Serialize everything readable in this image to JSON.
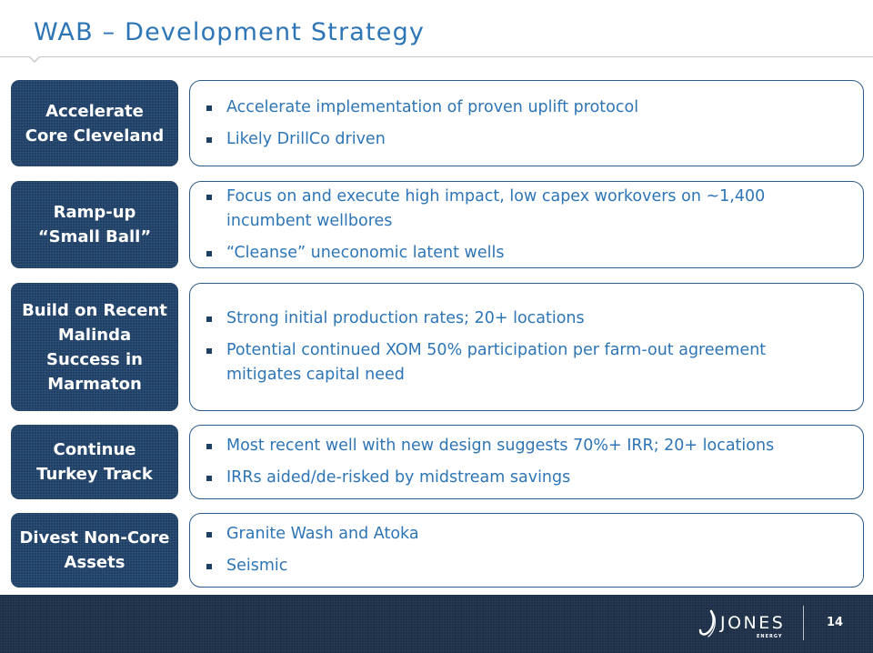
{
  "title": "WAB – Development Strategy",
  "strategies": [
    {
      "label": "Accelerate\nCore Cleveland",
      "bullets": [
        "Accelerate implementation of proven uplift protocol",
        "Likely DrillCo driven"
      ]
    },
    {
      "label": "Ramp-up\n“Small Ball”",
      "bullets": [
        "Focus on and execute high impact, low capex workovers on ~1,400 incumbent wellbores",
        "“Cleanse” uneconomic latent wells"
      ]
    },
    {
      "label": "Build on Recent\nMalinda\nSuccess in\nMarmaton",
      "bullets": [
        "Strong initial production rates; 20+ locations",
        "Potential continued XOM 50% participation per farm-out agreement mitigates capital need"
      ]
    },
    {
      "label": "Continue\nTurkey Track",
      "bullets": [
        "Most recent well with new design suggests 70%+ IRR; 20+ locations",
        "IRRs aided/de-risked by midstream savings"
      ]
    },
    {
      "label": "Divest Non-Core\nAssets",
      "bullets": [
        "Granite Wash and Atoka",
        "Seismic"
      ]
    }
  ],
  "footer": {
    "logo_text": "JONES",
    "logo_subtext": "ENERGY",
    "page_number": "14"
  },
  "colors": {
    "title": "#2e75b6",
    "label_box": "#1e3f66",
    "bullet_text": "#2e75b6",
    "footer": "#1d3048"
  }
}
